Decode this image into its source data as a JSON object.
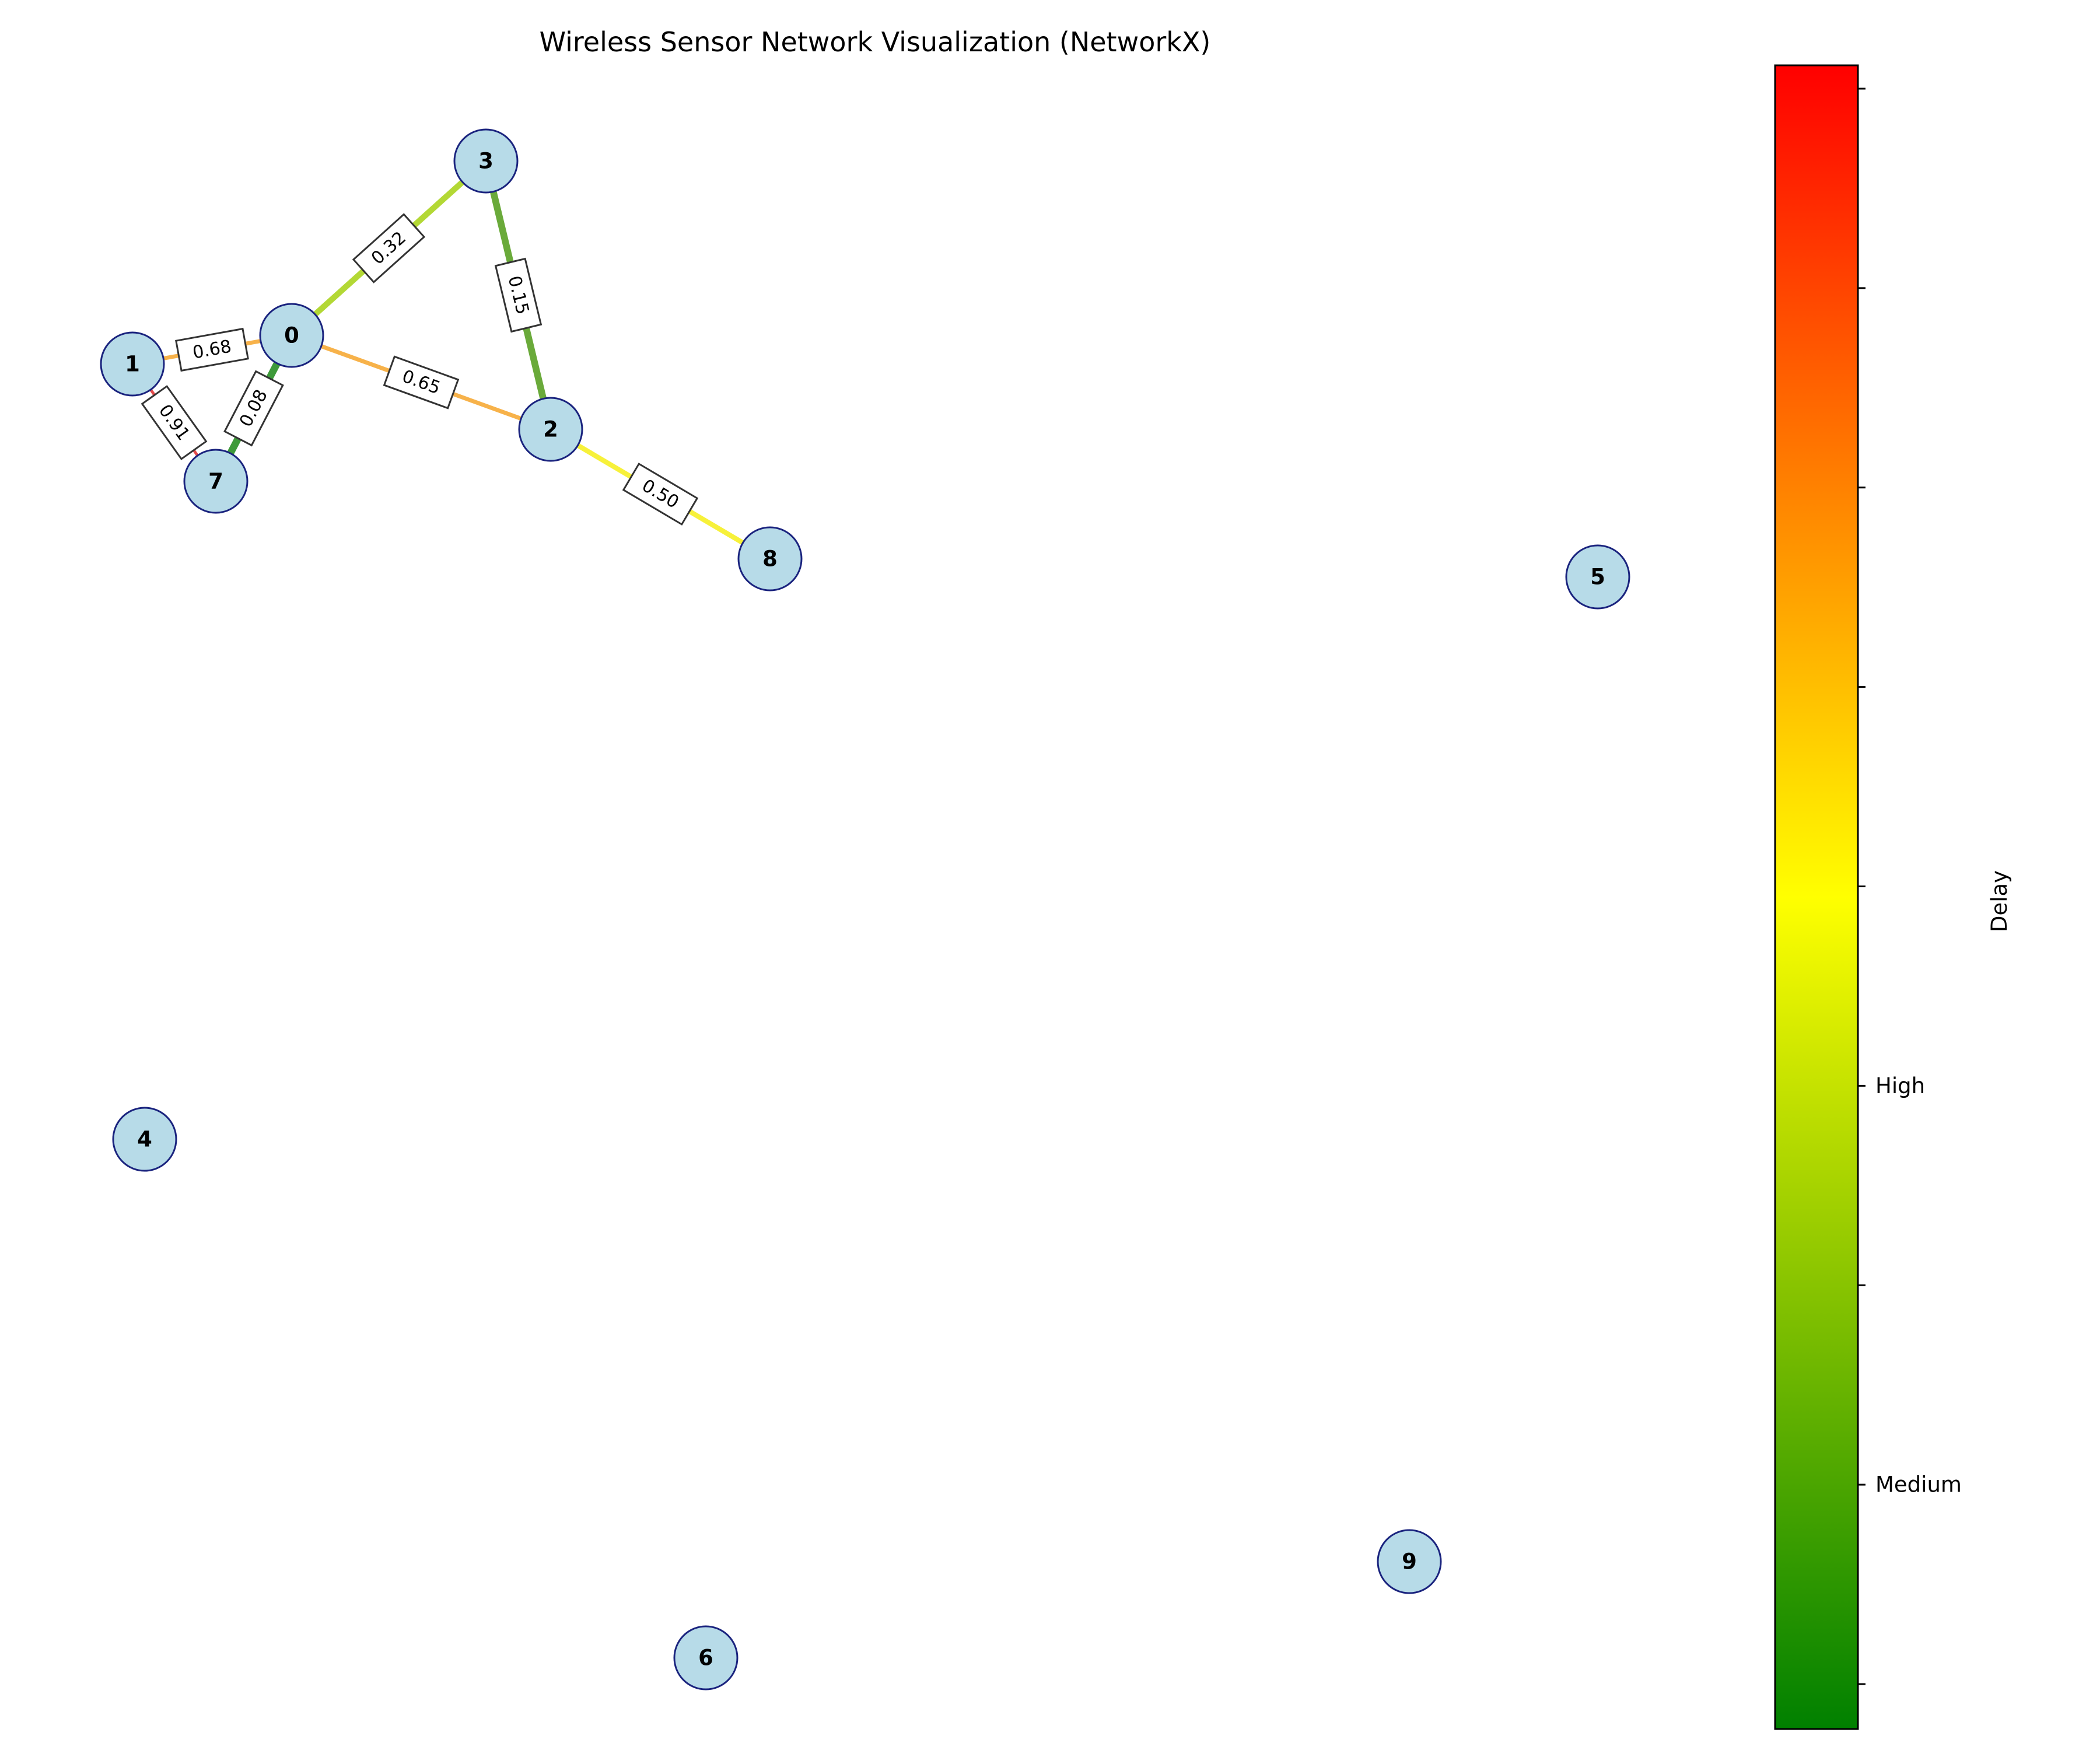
{
  "title": "Wireless Sensor Network Visualization (NetworkX)",
  "colorbar": {
    "label": "Delay",
    "colors": [
      "#008000",
      "#ffff00",
      "#ff0000"
    ],
    "ticks": [
      "",
      "Medium",
      "",
      "High",
      "",
      "",
      "",
      "",
      ""
    ],
    "tick_label_medium": "Medium",
    "tick_label_high": "High"
  },
  "nodes": [
    {
      "id": "0",
      "label": "0"
    },
    {
      "id": "1",
      "label": "1"
    },
    {
      "id": "2",
      "label": "2"
    },
    {
      "id": "3",
      "label": "3"
    },
    {
      "id": "4",
      "label": "4"
    },
    {
      "id": "5",
      "label": "5"
    },
    {
      "id": "6",
      "label": "6"
    },
    {
      "id": "7",
      "label": "7"
    },
    {
      "id": "8",
      "label": "8"
    },
    {
      "id": "9",
      "label": "9"
    }
  ],
  "edges": [
    {
      "source": "0",
      "target": "3",
      "delay": 0.32,
      "label": "0.32",
      "color": "#b3d835"
    },
    {
      "source": "3",
      "target": "2",
      "delay": 0.15,
      "label": "0.15",
      "color": "#6aaa3a"
    },
    {
      "source": "0",
      "target": "1",
      "delay": 0.68,
      "label": "0.68",
      "color": "#f7b24a"
    },
    {
      "source": "0",
      "target": "2",
      "delay": 0.65,
      "label": "0.65",
      "color": "#f7b24a"
    },
    {
      "source": "0",
      "target": "7",
      "delay": 0.08,
      "label": "0.08",
      "color": "#3e9a3a"
    },
    {
      "source": "1",
      "target": "7",
      "delay": 0.91,
      "label": "0.91",
      "color": "#e34a4a"
    },
    {
      "source": "2",
      "target": "8",
      "delay": 0.5,
      "label": "0.50",
      "color": "#f7f13a"
    }
  ]
}
